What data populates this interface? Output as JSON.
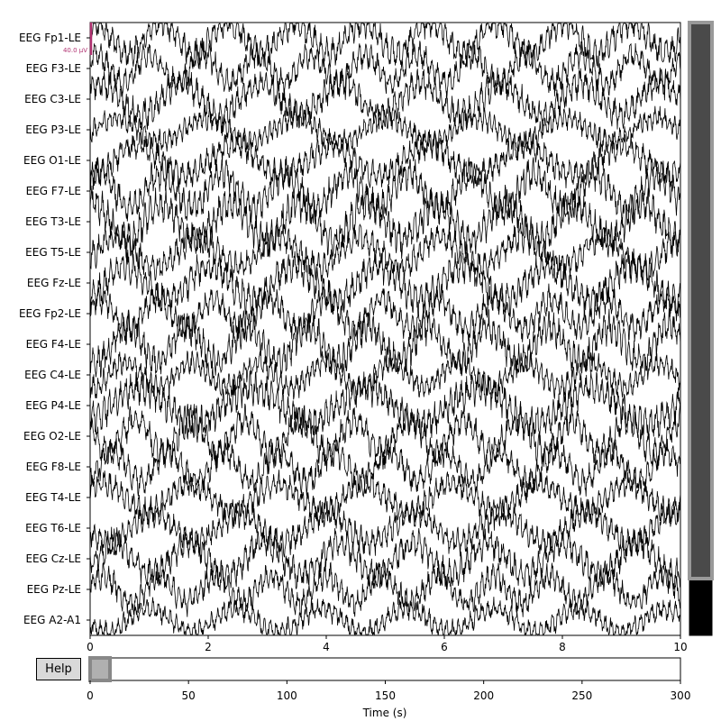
{
  "help_button": {
    "label": "Help"
  },
  "scale_bar": {
    "label": "40.0 µV",
    "color": "#b03070"
  },
  "colors": {
    "trace": "#000000",
    "overview_fill": "#4a4a4a",
    "selection_edge": "#999999"
  },
  "channels": [
    "EEG Fp1-LE",
    "EEG F3-LE",
    "EEG C3-LE",
    "EEG P3-LE",
    "EEG O1-LE",
    "EEG F7-LE",
    "EEG T3-LE",
    "EEG T5-LE",
    "EEG Fz-LE",
    "EEG Fp2-LE",
    "EEG F4-LE",
    "EEG C4-LE",
    "EEG P4-LE",
    "EEG O2-LE",
    "EEG F8-LE",
    "EEG T4-LE",
    "EEG T6-LE",
    "EEG Cz-LE",
    "EEG Pz-LE",
    "EEG A2-A1"
  ],
  "main_axis": {
    "xlim": [
      0,
      10
    ],
    "ticks": [
      0,
      2,
      4,
      6,
      8,
      10
    ],
    "tick_labels": [
      "0",
      "2",
      "4",
      "6",
      "8",
      "10"
    ]
  },
  "time_axis": {
    "xlabel": "Time (s)",
    "xlim": [
      0,
      300
    ],
    "ticks": [
      0,
      50,
      100,
      150,
      200,
      250,
      300
    ],
    "tick_labels": [
      "0",
      "50",
      "100",
      "150",
      "200",
      "250",
      "300"
    ],
    "view_window": [
      0,
      10
    ]
  },
  "channel_scrollbar": {
    "visible_channels": 20,
    "total_channels": 23
  },
  "chart_data": {
    "type": "line",
    "title": "",
    "xlabel": "",
    "ylabel": "",
    "xlim": [
      0,
      10
    ],
    "series": [
      {
        "name": "EEG Fp1-LE"
      },
      {
        "name": "EEG F3-LE"
      },
      {
        "name": "EEG C3-LE"
      },
      {
        "name": "EEG P3-LE"
      },
      {
        "name": "EEG O1-LE"
      },
      {
        "name": "EEG F7-LE"
      },
      {
        "name": "EEG T3-LE"
      },
      {
        "name": "EEG T5-LE"
      },
      {
        "name": "EEG Fz-LE"
      },
      {
        "name": "EEG Fp2-LE"
      },
      {
        "name": "EEG F4-LE"
      },
      {
        "name": "EEG C4-LE"
      },
      {
        "name": "EEG P4-LE"
      },
      {
        "name": "EEG O2-LE"
      },
      {
        "name": "EEG F8-LE"
      },
      {
        "name": "EEG T4-LE"
      },
      {
        "name": "EEG T6-LE"
      },
      {
        "name": "EEG Cz-LE"
      },
      {
        "name": "EEG Pz-LE"
      },
      {
        "name": "EEG A2-A1"
      }
    ],
    "grid": false
  }
}
